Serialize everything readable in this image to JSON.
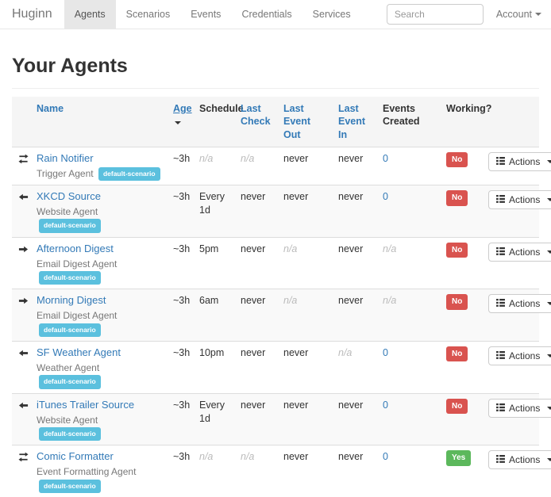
{
  "theme": {
    "link": "#337ab7",
    "info": "#5bc0de",
    "danger": "#d9534f",
    "success": "#5cb85c",
    "stripe": "#f9f9f9",
    "headerBg": "#f5f5f5",
    "border": "#dddddd",
    "navbarBorder": "#e7e7e7",
    "navbarActiveBg": "#e7e7e7",
    "muted": "#777777"
  },
  "navbar": {
    "brand": "Huginn",
    "items": [
      {
        "label": "Agents",
        "active": true
      },
      {
        "label": "Scenarios",
        "active": false
      },
      {
        "label": "Events",
        "active": false
      },
      {
        "label": "Credentials",
        "active": false
      },
      {
        "label": "Services",
        "active": false
      }
    ],
    "search_placeholder": "Search",
    "account_label": "Account"
  },
  "page": {
    "title": "Your Agents"
  },
  "table": {
    "headers": {
      "name": "Name",
      "age": "Age",
      "schedule": "Schedule",
      "last_check": "Last Check",
      "last_event_out": "Last Event Out",
      "last_event_in": "Last Event In",
      "events_created": "Events Created",
      "working": "Working?"
    },
    "sort": {
      "column": "age",
      "direction": "desc"
    },
    "actions_label": "Actions",
    "rows": [
      {
        "icon": "transfer",
        "name": "Rain Notifier",
        "type": "Trigger Agent",
        "badge": "default-scenario",
        "age": "~3h",
        "schedule": "n/a",
        "last_check": "n/a",
        "last_event_out": "never",
        "last_event_in": "never",
        "events_created": "0",
        "working": "No"
      },
      {
        "icon": "arrow-left",
        "name": "XKCD Source",
        "type": "Website Agent",
        "badge": "default-scenario",
        "age": "~3h",
        "schedule": "Every 1d",
        "last_check": "never",
        "last_event_out": "never",
        "last_event_in": "never",
        "events_created": "0",
        "working": "No"
      },
      {
        "icon": "arrow-right",
        "name": "Afternoon Digest",
        "type": "Email Digest Agent",
        "badge": "default-scenario",
        "age": "~3h",
        "schedule": "5pm",
        "last_check": "never",
        "last_event_out": "n/a",
        "last_event_in": "never",
        "events_created": "n/a",
        "working": "No"
      },
      {
        "icon": "arrow-right",
        "name": "Morning Digest",
        "type": "Email Digest Agent",
        "badge": "default-scenario",
        "age": "~3h",
        "schedule": "6am",
        "last_check": "never",
        "last_event_out": "n/a",
        "last_event_in": "never",
        "events_created": "n/a",
        "working": "No"
      },
      {
        "icon": "arrow-left",
        "name": "SF Weather Agent",
        "type": "Weather Agent",
        "badge": "default-scenario",
        "age": "~3h",
        "schedule": "10pm",
        "last_check": "never",
        "last_event_out": "never",
        "last_event_in": "n/a",
        "events_created": "0",
        "working": "No"
      },
      {
        "icon": "arrow-left",
        "name": "iTunes Trailer Source",
        "type": "Website Agent",
        "badge": "default-scenario",
        "age": "~3h",
        "schedule": "Every 1d",
        "last_check": "never",
        "last_event_out": "never",
        "last_event_in": "never",
        "events_created": "0",
        "working": "No"
      },
      {
        "icon": "transfer",
        "name": "Comic Formatter",
        "type": "Event Formatting Agent",
        "badge": "default-scenario",
        "age": "~3h",
        "schedule": "n/a",
        "last_check": "n/a",
        "last_event_out": "never",
        "last_event_in": "never",
        "events_created": "0",
        "working": "Yes"
      }
    ]
  }
}
